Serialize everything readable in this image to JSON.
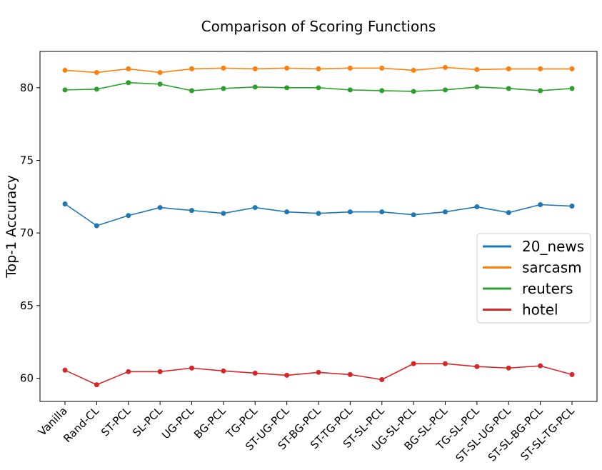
{
  "chart_data": {
    "type": "line",
    "title": "Comparison of Scoring Functions",
    "xlabel": "",
    "ylabel": "Top-1 Accuracy",
    "categories": [
      "Vanilla",
      "Rand-CL",
      "ST-PCL",
      "SL-PCL",
      "UG-PCL",
      "BG-PCL",
      "TG-PCL",
      "ST-UG-PCL",
      "ST-BG-PCL",
      "ST-TG-PCL",
      "ST-SL-PCL",
      "UG-SL-PCL",
      "BG-SL-PCL",
      "TG-SL-PCL",
      "ST-SL-UG-PCL",
      "ST-SL-BG-PCL",
      "ST-SL-TG-PCL"
    ],
    "ylim": [
      58.4,
      82.5
    ],
    "yticks": [
      60,
      65,
      70,
      75,
      80
    ],
    "grid": false,
    "legend_position": "center-right",
    "series": [
      {
        "name": "20_news",
        "color": "#1f77b4",
        "values": [
          72.0,
          70.5,
          71.2,
          71.75,
          71.55,
          71.35,
          71.75,
          71.45,
          71.35,
          71.45,
          71.45,
          71.25,
          71.45,
          71.8,
          71.4,
          71.95,
          71.85
        ]
      },
      {
        "name": "sarcasm",
        "color": "#ff7f0e",
        "values": [
          81.2,
          81.05,
          81.3,
          81.05,
          81.3,
          81.35,
          81.3,
          81.35,
          81.3,
          81.35,
          81.35,
          81.2,
          81.4,
          81.25,
          81.3,
          81.3,
          81.3
        ]
      },
      {
        "name": "reuters",
        "color": "#2ca02c",
        "values": [
          79.85,
          79.9,
          80.35,
          80.25,
          79.8,
          79.95,
          80.05,
          80.0,
          80.0,
          79.85,
          79.8,
          79.75,
          79.85,
          80.05,
          79.95,
          79.8,
          79.95
        ]
      },
      {
        "name": "hotel",
        "color": "#d62728",
        "values": [
          60.55,
          59.55,
          60.45,
          60.45,
          60.7,
          60.5,
          60.35,
          60.2,
          60.4,
          60.25,
          59.9,
          61.0,
          61.0,
          60.8,
          60.7,
          60.85,
          60.25
        ]
      }
    ]
  }
}
